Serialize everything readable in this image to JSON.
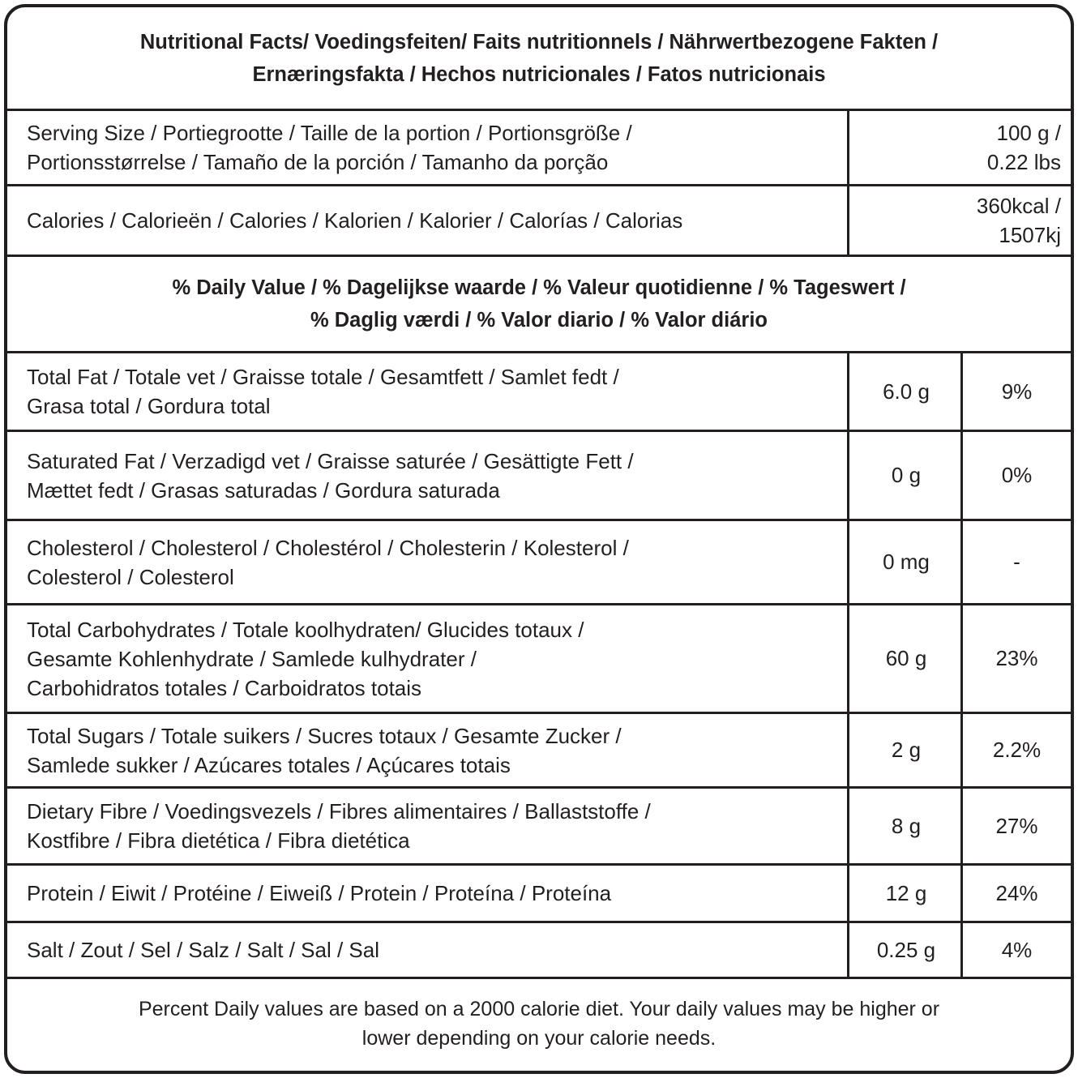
{
  "title": [
    "Nutritional Facts/ Voedingsfeiten/ Faits nutritionnels / Nährwertbezogene Fakten /",
    "Ernæringsfakta / Hechos nutricionales / Fatos nutricionais"
  ],
  "serving": {
    "label": [
      "Serving Size / Portiegrootte / Taille de la portion / Portionsgröße /",
      "Portionsstørrelse / Tamaño de la porción / Tamanho da porção"
    ],
    "value": [
      "100 g /",
      "0.22 lbs"
    ]
  },
  "calories": {
    "label": [
      "Calories / Calorieën / Calories / Kalorien / Kalorier / Calorías / Calorias"
    ],
    "value": [
      "360kcal /",
      "1507kj"
    ]
  },
  "daily_header": [
    "% Daily Value / % Dagelijkse waarde / % Valeur quotidienne / % Tageswert /",
    "% Daglig værdi / % Valor diario / % Valor diário"
  ],
  "nutrients": [
    {
      "label": [
        "Total Fat / Totale vet / Graisse totale / Gesamtfett / Samlet fedt /",
        "Grasa total / Gordura total"
      ],
      "amount": "6.0 g",
      "dv": "9%"
    },
    {
      "label": [
        "Saturated Fat / Verzadigd vet / Graisse saturée / Gesättigte Fett /",
        "Mættet fedt / Grasas saturadas / Gordura saturada"
      ],
      "amount": "0 g",
      "dv": "0%"
    },
    {
      "label": [
        "Cholesterol / Cholesterol  / Cholestérol / Cholesterin /  Kolesterol /",
        "Colesterol / Colesterol"
      ],
      "amount": "0 mg",
      "dv": "-"
    },
    {
      "label": [
        "Total Carbohydrates / Totale koolhydraten/ Glucides totaux /",
        "Gesamte Kohlenhydrate / Samlede kulhydrater /",
        "Carbohidratos totales / Carboidratos totais"
      ],
      "amount": "60 g",
      "dv": "23%"
    },
    {
      "label": [
        "Total Sugars / Totale suikers / Sucres totaux / Gesamte Zucker /",
        "Samlede sukker / Azúcares totales / Açúcares totais"
      ],
      "amount": "2 g",
      "dv": "2.2%"
    },
    {
      "label": [
        "Dietary Fibre / Voedingsvezels / Fibres alimentaires / Ballaststoffe /",
        "Kostfibre / Fibra dietética / Fibra dietética"
      ],
      "amount": "8 g",
      "dv": "27%"
    },
    {
      "label": [
        "Protein / Eiwit / Protéine / Eiweiß / Protein / Proteína / Proteína"
      ],
      "amount": "12 g",
      "dv": "24%"
    },
    {
      "label": [
        "Salt / Zout / Sel / Salz / Salt / Sal / Sal"
      ],
      "amount": "0.25 g",
      "dv": "4%"
    }
  ],
  "footer": [
    "Percent Daily values are based on a 2000 calorie diet. Your daily values may be higher or",
    "lower depending on your calorie needs."
  ]
}
